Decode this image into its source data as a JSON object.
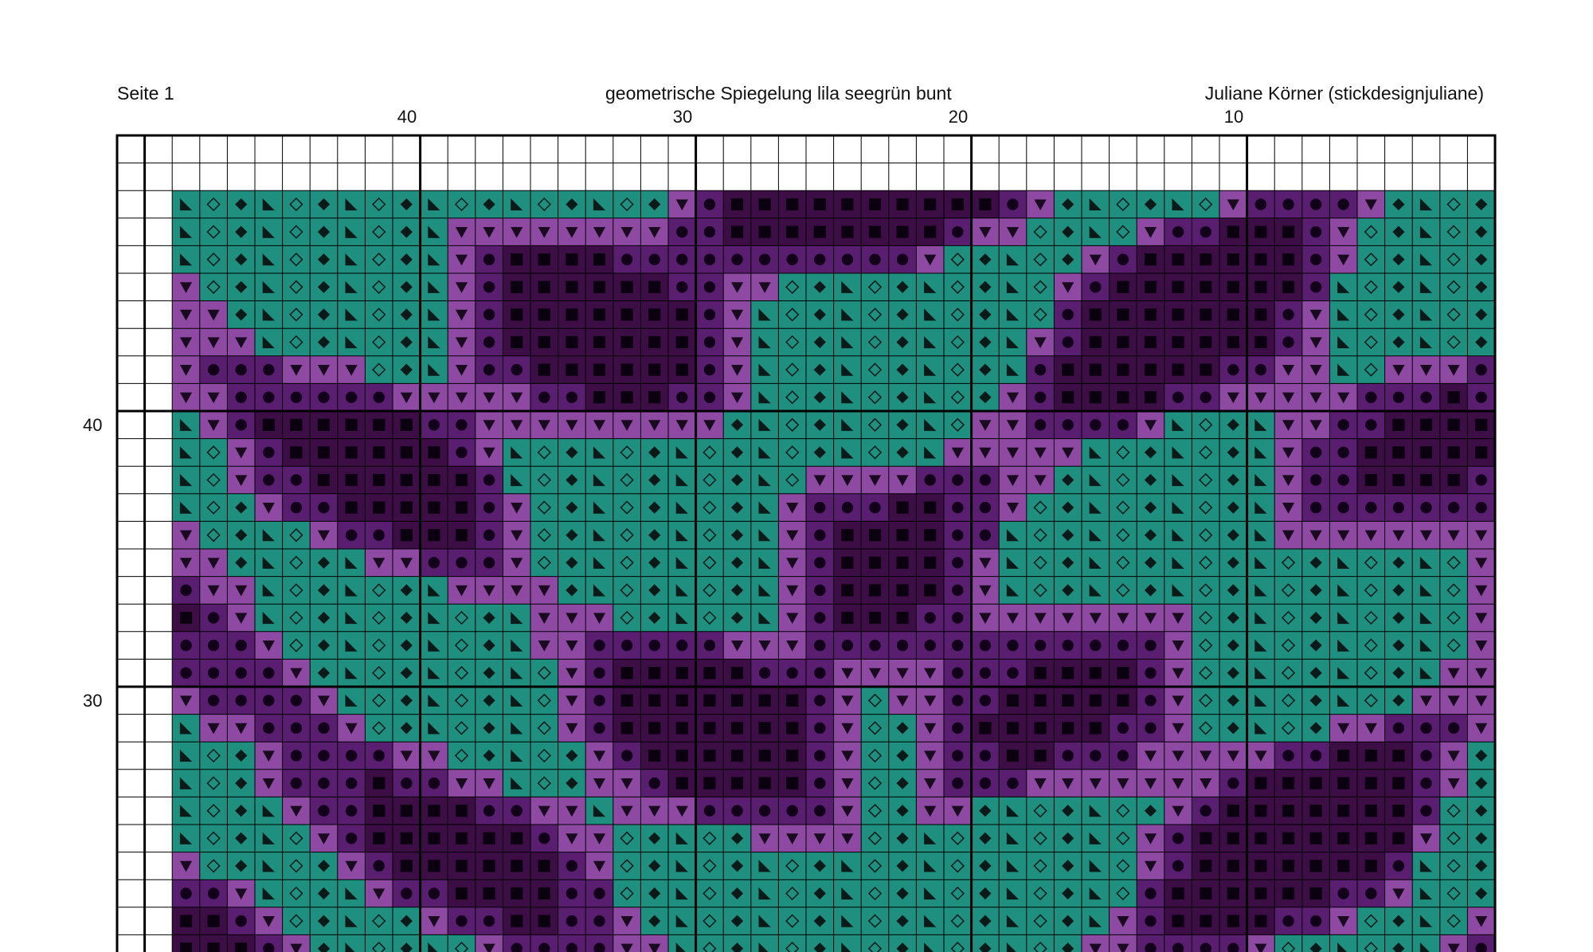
{
  "header": {
    "page_label": "Seite 1",
    "title": "geometrische Spiegelung lila seegrün bunt",
    "author": "Juliane Körner (stickdesignjuliane)"
  },
  "column_numbers": [
    "40",
    "30",
    "20",
    "10"
  ],
  "row_numbers": [
    "40",
    "30"
  ],
  "colors": {
    "teal": "#1f8f80",
    "lilac": "#8e4aa3",
    "plum": "#5a1e70",
    "aubergine": "#3d0d45",
    "grid_line": "#000000",
    "page_background": "#ffffff"
  },
  "symbols": {
    "teal": "diamond-outline-and-diamond-and-triangle-corner",
    "lilac": "triangle-down",
    "plum": "filled-circle",
    "aubergine": "filled-square"
  }
}
